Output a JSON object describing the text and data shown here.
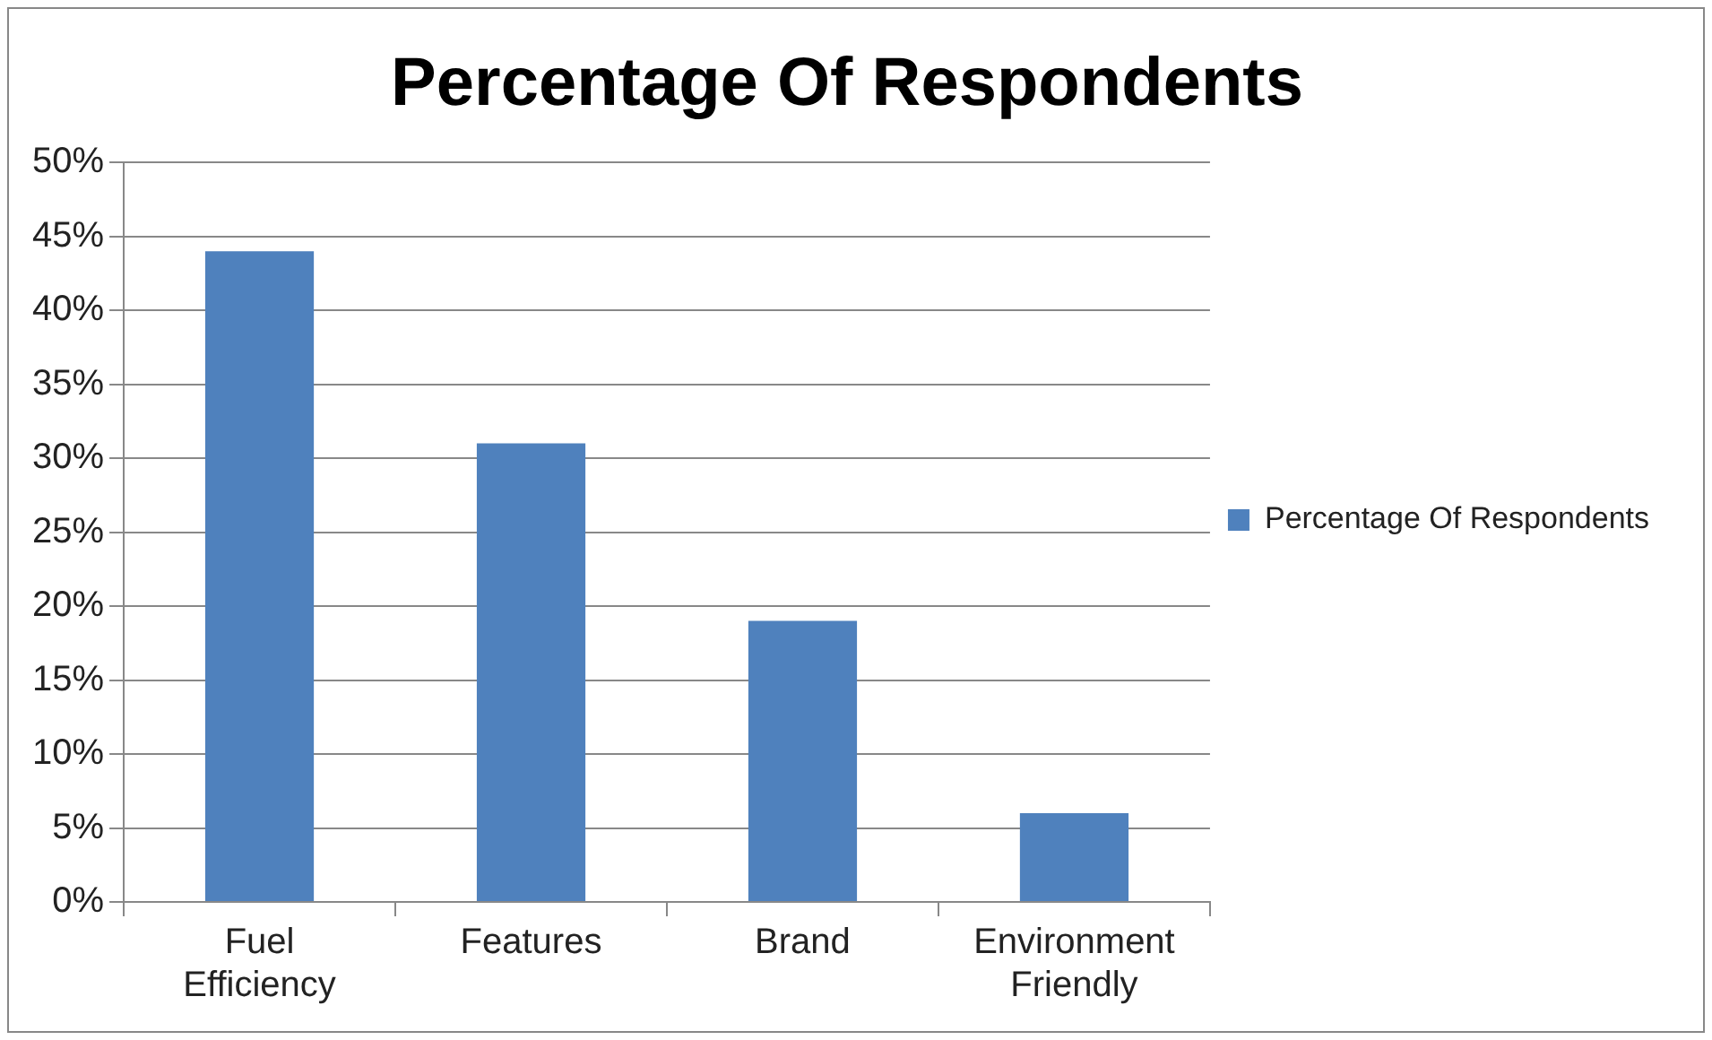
{
  "chart_data": {
    "type": "bar",
    "title": "Percentage Of Respondents",
    "categories": [
      "Fuel Efficiency",
      "Features",
      "Brand",
      "Environment Friendly"
    ],
    "series": [
      {
        "name": "Percentage Of Respondents",
        "color": "#4f81bd",
        "values": [
          44,
          31,
          19,
          6
        ]
      }
    ],
    "ylim": [
      0,
      50
    ],
    "yticks": [
      {
        "value": 0,
        "label": "0%"
      },
      {
        "value": 5,
        "label": "5%"
      },
      {
        "value": 10,
        "label": "10%"
      },
      {
        "value": 15,
        "label": "15%"
      },
      {
        "value": 20,
        "label": "20%"
      },
      {
        "value": 25,
        "label": "25%"
      },
      {
        "value": 30,
        "label": "30%"
      },
      {
        "value": 35,
        "label": "35%"
      },
      {
        "value": 40,
        "label": "40%"
      },
      {
        "value": 45,
        "label": "45%"
      },
      {
        "value": 50,
        "label": "50%"
      }
    ],
    "grid": "y",
    "legend": "right"
  }
}
